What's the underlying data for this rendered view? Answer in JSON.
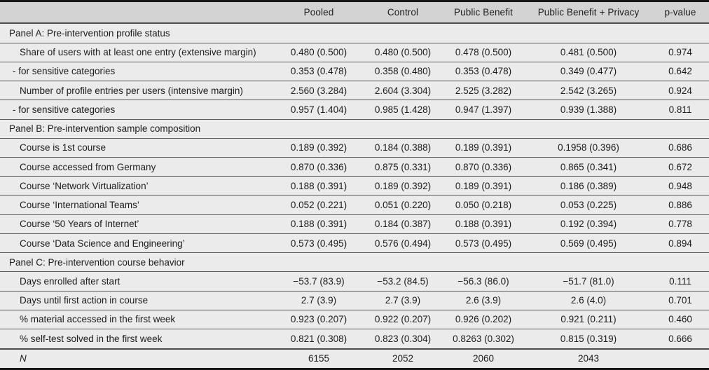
{
  "table": {
    "columns": [
      "",
      "Pooled",
      "Control",
      "Public Benefit",
      "Public Benefit + Privacy",
      "p-value"
    ],
    "colors": {
      "header_bg": "#d3d3d3",
      "body_bg": "#ebebeb",
      "row_rule": "#5c5c5c",
      "frame_border": "#161616"
    },
    "sections": [
      {
        "header": "Panel A: Pre-intervention profile status",
        "rows": [
          {
            "label": "Share of users with at least one entry (extensive margin)",
            "sub": false,
            "values": [
              "0.480 (0.500)",
              "0.480 (0.500)",
              "0.478 (0.500)",
              "0.481 (0.500)",
              "0.974"
            ]
          },
          {
            "label": "- for sensitive categories",
            "sub": true,
            "values": [
              "0.353 (0.478)",
              "0.358 (0.480)",
              "0.353 (0.478)",
              "0.349 (0.477)",
              "0.642"
            ]
          },
          {
            "label": "Number of profile entries per users (intensive margin)",
            "sub": false,
            "values": [
              "2.560 (3.284)",
              "2.604 (3.304)",
              "2.525 (3.282)",
              "2.542 (3.265)",
              "0.924"
            ]
          },
          {
            "label": "- for sensitive categories",
            "sub": true,
            "values": [
              "0.957 (1.404)",
              "0.985 (1.428)",
              "0.947 (1.397)",
              "0.939 (1.388)",
              "0.811"
            ]
          }
        ]
      },
      {
        "header": "Panel B: Pre-intervention sample composition",
        "rows": [
          {
            "label": "Course is 1st course",
            "sub": false,
            "values": [
              "0.189 (0.392)",
              "0.184 (0.388)",
              "0.189 (0.391)",
              "0.1958 (0.396)",
              "0.686"
            ]
          },
          {
            "label": "Course accessed from Germany",
            "sub": false,
            "values": [
              "0.870 (0.336)",
              "0.875 (0.331)",
              "0.870 (0.336)",
              "0.865 (0.341)",
              "0.672"
            ]
          },
          {
            "label": "Course ‘Network Virtualization’",
            "sub": false,
            "values": [
              "0.188 (0.391)",
              "0.189 (0.392)",
              "0.189 (0.391)",
              "0.186 (0.389)",
              "0.948"
            ]
          },
          {
            "label": "Course ‘International Teams’",
            "sub": false,
            "values": [
              "0.052 (0.221)",
              "0.051 (0.220)",
              "0.050 (0.218)",
              "0.053 (0.225)",
              "0.886"
            ]
          },
          {
            "label": "Course ‘50 Years of Internet’",
            "sub": false,
            "values": [
              "0.188 (0.391)",
              "0.184 (0.387)",
              "0.188 (0.391)",
              "0.192 (0.394)",
              "0.778"
            ]
          },
          {
            "label": "Course ‘Data Science and Engineering’",
            "sub": false,
            "values": [
              "0.573 (0.495)",
              "0.576 (0.494)",
              "0.573 (0.495)",
              "0.569 (0.495)",
              "0.894"
            ]
          }
        ]
      },
      {
        "header": "Panel C: Pre-intervention course behavior",
        "rows": [
          {
            "label": "Days enrolled after start",
            "sub": false,
            "values": [
              "−53.7 (83.9)",
              "−53.2 (84.5)",
              "−56.3 (86.0)",
              "−51.7 (81.0)",
              "0.111"
            ]
          },
          {
            "label": "Days until first action in course",
            "sub": false,
            "values": [
              "2.7 (3.9)",
              "2.7 (3.9)",
              "2.6 (3.9)",
              "2.6 (4.0)",
              "0.701"
            ]
          },
          {
            "label": "% material accessed in the first week",
            "sub": false,
            "values": [
              "0.923 (0.207)",
              "0.922 (0.207)",
              "0.926 (0.202)",
              "0.921 (0.211)",
              "0.460"
            ]
          },
          {
            "label": "% self-test solved in the first week",
            "sub": false,
            "values": [
              "0.821 (0.308)",
              "0.823 (0.304)",
              "0.8263 (0.302)",
              "0.815 (0.319)",
              "0.666"
            ]
          }
        ]
      }
    ],
    "footer": {
      "label": "N",
      "values": [
        "6155",
        "2052",
        "2060",
        "2043",
        ""
      ]
    }
  }
}
